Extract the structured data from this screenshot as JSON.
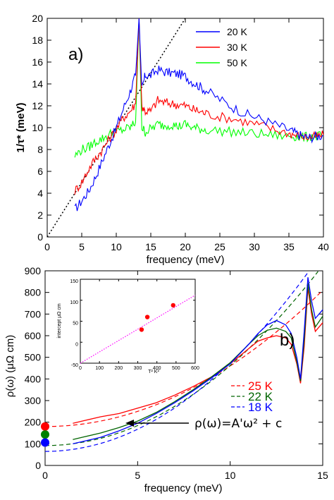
{
  "chart_data": [
    {
      "id": "a",
      "type": "line",
      "panel_label": "a)",
      "xlabel": "frequency (meV)",
      "ylabel": "1/τ* (meV)",
      "xlim": [
        0,
        40
      ],
      "ylim": [
        0,
        20
      ],
      "xticks": [
        0,
        5,
        10,
        15,
        20,
        25,
        30,
        35,
        40
      ],
      "yticks": [
        0,
        2,
        4,
        6,
        8,
        10,
        12,
        14,
        16,
        18,
        20
      ],
      "legend_position": "top-right",
      "series": [
        {
          "name": "20 K",
          "color": "#0000ff",
          "x": [
            4,
            5,
            6,
            7,
            8,
            9,
            10,
            11,
            12,
            12.8,
            13.3,
            13.7,
            14.2,
            15,
            16,
            17,
            18,
            19,
            20,
            21,
            22,
            23,
            25,
            27,
            29,
            31,
            33,
            35,
            36,
            37,
            38,
            39,
            40
          ],
          "y": [
            2.5,
            3.3,
            4.2,
            5.5,
            7.0,
            8.5,
            10.0,
            11.7,
            13.3,
            14.8,
            20,
            13.5,
            14.8,
            14.8,
            15.3,
            15.1,
            15.0,
            14.9,
            14.7,
            14.2,
            13.8,
            13.4,
            12.6,
            11.8,
            11.2,
            10.8,
            10.3,
            9.8,
            9.5,
            9.2,
            9.1,
            9.2,
            9.3
          ]
        },
        {
          "name": "30 K",
          "color": "#ff0000",
          "x": [
            4,
            5,
            6,
            7,
            8,
            9,
            10,
            11,
            12,
            12.8,
            13.3,
            13.7,
            14.2,
            15,
            16,
            17,
            18,
            19,
            20,
            21,
            22,
            23,
            25,
            27,
            29,
            31,
            33,
            35,
            36,
            37,
            38,
            39,
            40
          ],
          "y": [
            4.2,
            5.0,
            6.2,
            7.2,
            8.0,
            9.0,
            9.8,
            10.9,
            11.5,
            12.2,
            20,
            12.0,
            11.5,
            11.5,
            12.5,
            12.3,
            12.2,
            12.1,
            12.0,
            11.7,
            11.5,
            11.3,
            11.0,
            10.8,
            10.5,
            10.2,
            9.8,
            9.5,
            9.3,
            9.2,
            9.1,
            9.2,
            9.3
          ]
        },
        {
          "name": "50 K",
          "color": "#00ff00",
          "x": [
            4,
            5,
            6,
            7,
            8,
            9,
            10,
            11,
            12,
            12.8,
            13.3,
            13.7,
            14.2,
            15,
            16,
            17,
            18,
            19,
            20,
            21,
            22,
            23,
            25,
            27,
            29,
            31,
            33,
            35,
            36,
            37,
            38,
            39,
            40
          ],
          "y": [
            7.4,
            8.0,
            8.2,
            8.7,
            9.0,
            9.4,
            9.6,
            9.8,
            10.0,
            10.5,
            20,
            10.0,
            9.6,
            9.9,
            10.3,
            10.2,
            10.3,
            10.1,
            10.3,
            10.0,
            9.9,
            9.8,
            9.7,
            9.6,
            9.5,
            9.4,
            9.3,
            9.2,
            9.2,
            9.1,
            9.2,
            9.2,
            9.3
          ]
        }
      ],
      "guide_line": {
        "style": "dotted",
        "color": "#000000",
        "x": [
          0,
          20
        ],
        "y": [
          0,
          20
        ]
      }
    },
    {
      "id": "b",
      "type": "line",
      "panel_label": "b)",
      "xlabel": "frequency (meV)",
      "ylabel": "ρ(ω) (μΩ cm)",
      "xlim": [
        0,
        15
      ],
      "ylim": [
        0,
        900
      ],
      "xticks": [
        0,
        5,
        10,
        15
      ],
      "yticks": [
        0,
        100,
        200,
        300,
        400,
        500,
        600,
        700,
        800,
        900
      ],
      "legend_position": "middle-right",
      "annotation": "ρ(ω)=A'ω² + c",
      "series": [
        {
          "name": "25 K",
          "color": "#ff0000",
          "intercept": 180,
          "x": [
            1.5,
            2,
            3,
            4,
            5,
            6,
            7,
            8,
            9,
            10,
            11,
            11.5,
            12,
            12.5,
            13,
            13.3,
            13.6,
            13.8,
            14.0,
            14.2,
            14.4,
            14.6,
            15
          ],
          "y": [
            195,
            205,
            225,
            240,
            265,
            290,
            325,
            365,
            410,
            470,
            540,
            575,
            590,
            600,
            590,
            560,
            470,
            380,
            550,
            820,
            700,
            620,
            660
          ]
        },
        {
          "name": "22 K",
          "color": "#006400",
          "intercept": 128,
          "x": [
            1.5,
            2,
            3,
            4,
            5,
            6,
            7,
            8,
            9,
            10,
            11,
            11.5,
            12,
            12.5,
            13,
            13.3,
            13.6,
            13.8,
            14.0,
            14.2,
            14.4,
            14.6,
            15
          ],
          "y": [
            120,
            130,
            150,
            175,
            205,
            245,
            295,
            350,
            410,
            475,
            560,
            600,
            625,
            635,
            620,
            590,
            480,
            390,
            580,
            840,
            720,
            640,
            690
          ]
        },
        {
          "name": "18 K",
          "color": "#0000ff",
          "intercept": 110,
          "x": [
            1.5,
            2,
            3,
            4,
            5,
            6,
            7,
            8,
            9,
            10,
            11,
            11.5,
            12,
            12.5,
            13,
            13.3,
            13.6,
            13.8,
            14.0,
            14.2,
            14.4,
            14.6,
            15
          ],
          "y": [
            100,
            110,
            130,
            160,
            195,
            240,
            290,
            345,
            405,
            470,
            560,
            610,
            650,
            670,
            650,
            610,
            500,
            400,
            620,
            870,
            760,
            680,
            720
          ]
        }
      ],
      "fits": [
        {
          "color": "#ff0000",
          "style": "dashed",
          "c": 180,
          "A": 2.8
        },
        {
          "color": "#006400",
          "style": "dashed",
          "c": 92,
          "A": 3.7
        },
        {
          "color": "#0000ff",
          "style": "dashed",
          "c": 65,
          "A": 4.1
        }
      ],
      "markers": [
        {
          "x": 0,
          "y": 180,
          "color": "#ff0000"
        },
        {
          "x": 0,
          "y": 143,
          "color": "#008000"
        },
        {
          "x": 0,
          "y": 106,
          "color": "#0000ff"
        }
      ]
    },
    {
      "id": "b-inset",
      "type": "scatter",
      "xlabel": "T² K²",
      "ylabel": "intercept μΩ cm",
      "xlim": [
        0,
        600
      ],
      "ylim": [
        -50,
        150
      ],
      "xticks": [
        0,
        100,
        200,
        300,
        400,
        500,
        600
      ],
      "yticks": [
        -50,
        0,
        50,
        100,
        150
      ],
      "points": {
        "x": [
          320,
          350,
          485
        ],
        "y": [
          30,
          60,
          88
        ]
      },
      "fit_line": {
        "style": "dotted",
        "color": "#ff00ff",
        "x": [
          0,
          600
        ],
        "y": [
          -50,
          112
        ]
      }
    }
  ]
}
